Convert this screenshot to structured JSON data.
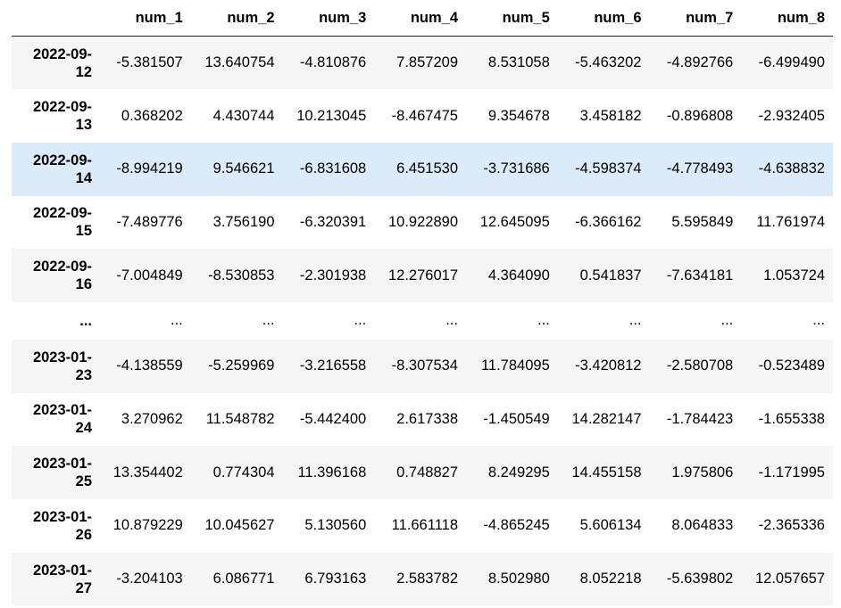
{
  "table": {
    "index_header": "",
    "columns": [
      "num_1",
      "num_2",
      "num_3",
      "num_4",
      "num_5",
      "num_6",
      "num_7",
      "num_8"
    ],
    "hovered_row": 2,
    "rows": [
      {
        "index_parts": [
          "2022-09-",
          "12"
        ],
        "values": [
          "-5.381507",
          "13.640754",
          "-4.810876",
          "7.857209",
          "8.531058",
          "-5.463202",
          "-4.892766",
          "-6.499490"
        ]
      },
      {
        "index_parts": [
          "2022-09-",
          "13"
        ],
        "values": [
          "0.368202",
          "4.430744",
          "10.213045",
          "-8.467475",
          "9.354678",
          "3.458182",
          "-0.896808",
          "-2.932405"
        ]
      },
      {
        "index_parts": [
          "2022-09-",
          "14"
        ],
        "values": [
          "-8.994219",
          "9.546621",
          "-6.831608",
          "6.451530",
          "-3.731686",
          "-4.598374",
          "-4.778493",
          "-4.638832"
        ]
      },
      {
        "index_parts": [
          "2022-09-",
          "15"
        ],
        "values": [
          "-7.489776",
          "3.756190",
          "-6.320391",
          "10.922890",
          "12.645095",
          "-6.366162",
          "5.595849",
          "11.761974"
        ]
      },
      {
        "index_parts": [
          "2022-09-",
          "16"
        ],
        "values": [
          "-7.004849",
          "-8.530853",
          "-2.301938",
          "12.276017",
          "4.364090",
          "0.541837",
          "-7.634181",
          "1.053724"
        ]
      },
      {
        "index_parts": [
          "...",
          ""
        ],
        "values": [
          "...",
          "...",
          "...",
          "...",
          "...",
          "...",
          "...",
          "..."
        ],
        "ellipsis": true
      },
      {
        "index_parts": [
          "2023-01-",
          "23"
        ],
        "values": [
          "-4.138559",
          "-5.259969",
          "-3.216558",
          "-8.307534",
          "11.784095",
          "-3.420812",
          "-2.580708",
          "-0.523489"
        ]
      },
      {
        "index_parts": [
          "2023-01-",
          "24"
        ],
        "values": [
          "3.270962",
          "11.548782",
          "-5.442400",
          "2.617338",
          "-1.450549",
          "14.282147",
          "-1.784423",
          "-1.655338"
        ]
      },
      {
        "index_parts": [
          "2023-01-",
          "25"
        ],
        "values": [
          "13.354402",
          "0.774304",
          "11.396168",
          "0.748827",
          "8.249295",
          "14.455158",
          "1.975806",
          "-1.171995"
        ]
      },
      {
        "index_parts": [
          "2023-01-",
          "26"
        ],
        "values": [
          "10.879229",
          "10.045627",
          "5.130560",
          "11.661118",
          "-4.865245",
          "5.606134",
          "8.064833",
          "-2.365336"
        ]
      },
      {
        "index_parts": [
          "2023-01-",
          "27"
        ],
        "values": [
          "-3.204103",
          "6.086771",
          "6.793163",
          "2.583782",
          "8.502980",
          "8.052218",
          "-5.639802",
          "12.057657"
        ]
      }
    ]
  }
}
